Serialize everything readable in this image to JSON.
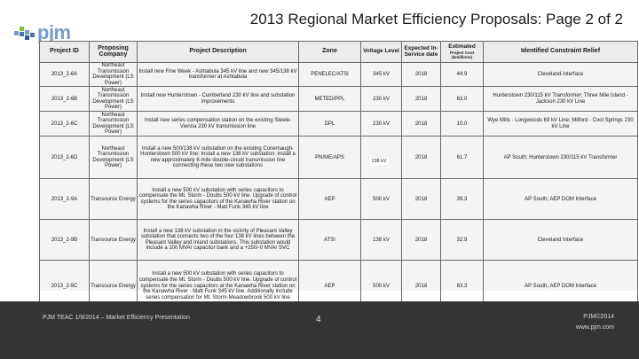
{
  "header": {
    "title": "2013 Regional Market Efficiency Proposals: Page 2 of 2",
    "logo_text": "pjm"
  },
  "table": {
    "headers": {
      "project_id": "Project ID",
      "company": "Proposing Company",
      "description": "Project Description",
      "zone": "Zone",
      "voltage": "Voltage Level",
      "in_service": "Expected In-Service date",
      "cost_title": "Estimated",
      "cost_sub": "Project Cost ($millions)",
      "constraint": "Identified Constraint Relief"
    },
    "rows": [
      {
        "id": "2013_2-6A",
        "company": "Northeast Transmission Development (LS Power)",
        "description": "Install new Fine Week - Ashtabula 345 kV line and new 345/138 kV transformer at Ashtabula",
        "zone": "PENELEC/ATSI",
        "voltage": "345 kV",
        "year": "2018",
        "cost": "44.9",
        "constraint": "Cleveland Interface"
      },
      {
        "id": "2013_2-6B",
        "company": "Northeast Transmission Development (LS Power)",
        "description": "Install new Hunterstown - Cumberland 230 kV line and substation improvements",
        "zone": "METED/PPL",
        "voltage": "230 kV",
        "year": "2018",
        "cost": "63.0",
        "constraint": "Hunterstown 230/115 kV Transformer; Three Mile Island - Jackson 230 kV Line"
      },
      {
        "id": "2013_2-6C",
        "company": "Northeast Transmission Development (LS Power)",
        "description": "Install new series compensation station on the existing Steele-Vienna 230 kV transmission line",
        "zone": "DPL",
        "voltage": "230 kV",
        "year": "2018",
        "cost": "10.0",
        "constraint": "Wye Mills - Longwoods 69 kV Line; Milford - Cool Springs 230 kV Line"
      },
      {
        "id": "2013_2-6D",
        "company": "Northeast Transmission Development (LS Power)",
        "description": "Install a new 500/138 kV substation on the existing Conemaugh-Hunterstown 500 kV line; Install a new 138 kV substation; install a new approximately 6-mile double-circuit transmission line connecting these two new substations",
        "zone": "PN/ME/APS",
        "voltage": "138 kV",
        "year": "2018",
        "cost": "61.7",
        "constraint": "AP South; Hunterstown 230/115 kV Transformer"
      },
      {
        "id": "2013_2-9A",
        "company": "Transource Energy",
        "description": "Install a new 500 kV substation with series capacitors to compensate the Mt. Storm - Doubs 500 kV line. Upgrade of control systems for the series capacitors of the Kanawha River station on the Kanawha River - Matt Funk 345 kV line",
        "zone": "AEP",
        "voltage": "500 kV",
        "year": "2018",
        "cost": "39.3",
        "constraint": "AP South; AEP DOM Interface"
      },
      {
        "id": "2013_2-9B",
        "company": "Transource Energy",
        "description": "Install a new 138 kV substation in the vicinity of Pleasant Valley substation that connects two of the four 138 kV lines between the Pleasant Valley and Inland substations. This substation would include a 100 MVAr capacitor bank and a +250/-0 MVAr SVC",
        "zone": "ATSI",
        "voltage": "138 kV",
        "year": "2018",
        "cost": "32.9",
        "constraint": "Cleveland Interface"
      },
      {
        "id": "2013_2-9C",
        "company": "Transource Energy",
        "description": "Install a new 500 kV substation with series capacitors to compensate the Mt. Storm - Doubs 500 kV line. Upgrade of control systems for the series capacitors at the Kanawha River station on the Kanawha River - Matt Funk 345 kV line. Additionally include series compensation for Mt. Storm-Meadowbrook 500 kV line",
        "zone": "AEP",
        "voltage": "500 kV",
        "year": "2018",
        "cost": "63.3",
        "constraint": "AP South; AEP DOM Interface"
      }
    ]
  },
  "footer": {
    "left_text": "PJM TEAC 1/9/2014 – Market Efficiency Presentation",
    "page_number": "4",
    "copyright": "PJM©2014",
    "website": "www.pjm.com"
  },
  "colors": {
    "footer_bg": "#343434",
    "logo_blue": "#7a9cc6",
    "logo_green": "#7dbb42"
  }
}
